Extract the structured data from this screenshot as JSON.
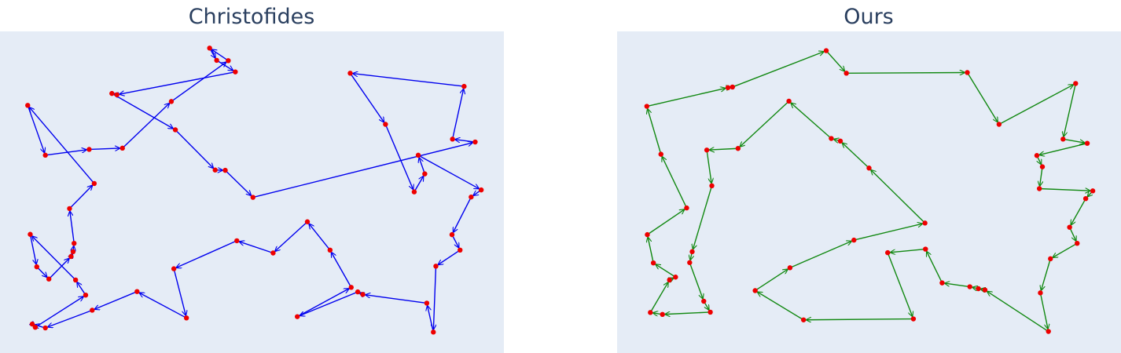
{
  "chart_data": [
    {
      "type": "line",
      "title": "Christofides",
      "xlabel": "",
      "ylabel": "",
      "xlim": [
        0,
        1
      ],
      "ylim": [
        0,
        1
      ],
      "grid": false,
      "line_color": "#0000ee",
      "marker_color": "#ee0000",
      "arrows": true,
      "points": [
        [
          0.43,
          0.91
        ],
        [
          0.467,
          0.874
        ],
        [
          0.232,
          0.803
        ],
        [
          0.222,
          0.807
        ],
        [
          0.348,
          0.694
        ],
        [
          0.427,
          0.569
        ],
        [
          0.447,
          0.568
        ],
        [
          0.502,
          0.484
        ],
        [
          0.943,
          0.656
        ],
        [
          0.898,
          0.665
        ],
        [
          0.921,
          0.829
        ],
        [
          0.695,
          0.87
        ],
        [
          0.765,
          0.711
        ],
        [
          0.822,
          0.501
        ],
        [
          0.843,
          0.557
        ],
        [
          0.83,
          0.615
        ],
        [
          0.955,
          0.507
        ],
        [
          0.935,
          0.485
        ],
        [
          0.897,
          0.368
        ],
        [
          0.913,
          0.32
        ],
        [
          0.865,
          0.27
        ],
        [
          0.86,
          0.065
        ],
        [
          0.847,
          0.155
        ],
        [
          0.72,
          0.182
        ],
        [
          0.71,
          0.19
        ],
        [
          0.59,
          0.113
        ],
        [
          0.697,
          0.204
        ],
        [
          0.655,
          0.32
        ],
        [
          0.61,
          0.408
        ],
        [
          0.542,
          0.311
        ],
        [
          0.47,
          0.349
        ],
        [
          0.345,
          0.262
        ],
        [
          0.37,
          0.109
        ],
        [
          0.272,
          0.191
        ],
        [
          0.183,
          0.133
        ],
        [
          0.09,
          0.078
        ],
        [
          0.064,
          0.09
        ],
        [
          0.07,
          0.08
        ],
        [
          0.17,
          0.18
        ],
        [
          0.15,
          0.227
        ],
        [
          0.06,
          0.369
        ],
        [
          0.073,
          0.268
        ],
        [
          0.097,
          0.23
        ],
        [
          0.141,
          0.3
        ],
        [
          0.145,
          0.315
        ],
        [
          0.147,
          0.341
        ],
        [
          0.138,
          0.449
        ],
        [
          0.187,
          0.527
        ],
        [
          0.055,
          0.77
        ],
        [
          0.09,
          0.615
        ],
        [
          0.177,
          0.633
        ],
        [
          0.243,
          0.637
        ],
        [
          0.34,
          0.782
        ],
        [
          0.453,
          0.909
        ],
        [
          0.416,
          0.948
        ]
      ]
    },
    {
      "type": "line",
      "title": "Ours",
      "xlabel": "",
      "ylabel": "",
      "xlim": [
        0,
        1
      ],
      "ylim": [
        0,
        1
      ],
      "grid": false,
      "line_color": "#118811",
      "marker_color": "#ee0000",
      "arrows": true,
      "points": [
        [
          0.415,
          0.94
        ],
        [
          0.455,
          0.87
        ],
        [
          0.695,
          0.872
        ],
        [
          0.758,
          0.711
        ],
        [
          0.91,
          0.838
        ],
        [
          0.885,
          0.665
        ],
        [
          0.933,
          0.652
        ],
        [
          0.833,
          0.614
        ],
        [
          0.844,
          0.579
        ],
        [
          0.838,
          0.511
        ],
        [
          0.944,
          0.504
        ],
        [
          0.93,
          0.48
        ],
        [
          0.898,
          0.391
        ],
        [
          0.913,
          0.341
        ],
        [
          0.86,
          0.293
        ],
        [
          0.84,
          0.187
        ],
        [
          0.856,
          0.067
        ],
        [
          0.73,
          0.196
        ],
        [
          0.717,
          0.2
        ],
        [
          0.7,
          0.206
        ],
        [
          0.645,
          0.218
        ],
        [
          0.612,
          0.323
        ],
        [
          0.537,
          0.312
        ],
        [
          0.588,
          0.106
        ],
        [
          0.37,
          0.103
        ],
        [
          0.274,
          0.194
        ],
        [
          0.343,
          0.265
        ],
        [
          0.47,
          0.351
        ],
        [
          0.611,
          0.404
        ],
        [
          0.5,
          0.575
        ],
        [
          0.443,
          0.659
        ],
        [
          0.425,
          0.667
        ],
        [
          0.341,
          0.783
        ],
        [
          0.24,
          0.636
        ],
        [
          0.178,
          0.631
        ],
        [
          0.188,
          0.52
        ],
        [
          0.149,
          0.315
        ],
        [
          0.144,
          0.281
        ],
        [
          0.172,
          0.161
        ],
        [
          0.185,
          0.127
        ],
        [
          0.09,
          0.12
        ],
        [
          0.066,
          0.126
        ],
        [
          0.104,
          0.227
        ],
        [
          0.116,
          0.236
        ],
        [
          0.072,
          0.28
        ],
        [
          0.06,
          0.368
        ],
        [
          0.138,
          0.451
        ],
        [
          0.087,
          0.618
        ],
        [
          0.059,
          0.767
        ],
        [
          0.22,
          0.825
        ],
        [
          0.229,
          0.827
        ]
      ]
    }
  ]
}
